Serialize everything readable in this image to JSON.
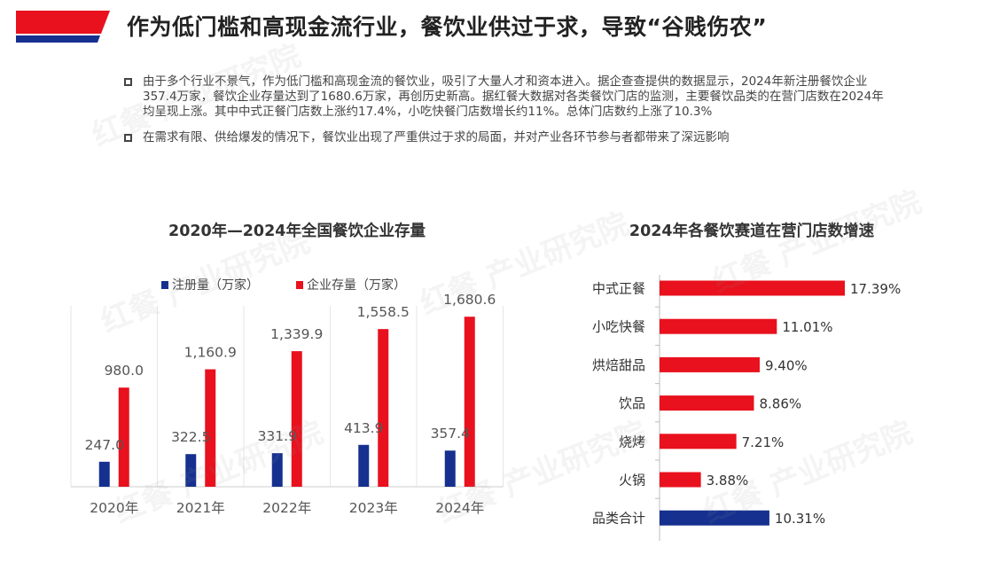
{
  "header": {
    "title": "作为低门槛和高现金流行业，餐饮业供过于求，导致“谷贱伤农”",
    "accent_red": "#e8111d",
    "accent_blue": "#16308f"
  },
  "bullets": [
    "由于多个行业不景气，作为低门槛和高现金流的餐饮业，吸引了大量人才和资本进入。据企查查提供的数据显示，2024年新注册餐饮企业357.4万家，餐饮企业存量达到了1680.6万家，再创历史新高。据红餐大数据对各类餐饮门店的监测，主要餐饮品类的在营门店数在2024年均呈现上涨。其中中式正餐门店数上涨约17.4%，小吃快餐门店数增长约11%。总体门店数约上涨了10.3%",
    "在需求有限、供给爆发的情况下，餐饮业出现了严重供过于求的局面，并对产业各环节参与者都带来了深远影响"
  ],
  "watermark": "红餐 产业研究院",
  "chart_data": [
    {
      "type": "bar",
      "title": "2020年—2024年全国餐饮企业存量",
      "categories": [
        "2020年",
        "2021年",
        "2022年",
        "2023年",
        "2024年"
      ],
      "series": [
        {
          "name": "注册量（万家）",
          "color": "#16308f",
          "values": [
            247.0,
            322.5,
            331.9,
            413.9,
            357.4
          ],
          "labels": [
            "247.0",
            "322.5",
            "331.9",
            "413.9",
            "357.4"
          ]
        },
        {
          "name": "企业存量（万家）",
          "color": "#e8111d",
          "values": [
            980.0,
            1160.9,
            1339.9,
            1558.5,
            1680.6
          ],
          "labels": [
            "980.0",
            "1,160.9",
            "1,339.9",
            "1,558.5",
            "1,680.6"
          ]
        }
      ],
      "legend": "top-left",
      "grid": false
    },
    {
      "type": "bar",
      "orientation": "horizontal",
      "title": "2024年各餐饮赛道在营门店数增速",
      "categories": [
        "中式正餐",
        "小吃快餐",
        "烘焙甜品",
        "饮品",
        "烧烤",
        "火锅",
        "品类合计"
      ],
      "values": [
        17.39,
        11.01,
        9.4,
        8.86,
        7.21,
        3.88,
        10.31
      ],
      "labels": [
        "17.39%",
        "11.01%",
        "9.40%",
        "8.86%",
        "7.21%",
        "3.88%",
        "10.31%"
      ],
      "colors": [
        "#e8111d",
        "#e8111d",
        "#e8111d",
        "#e8111d",
        "#e8111d",
        "#e8111d",
        "#16308f"
      ],
      "grid": false
    }
  ]
}
